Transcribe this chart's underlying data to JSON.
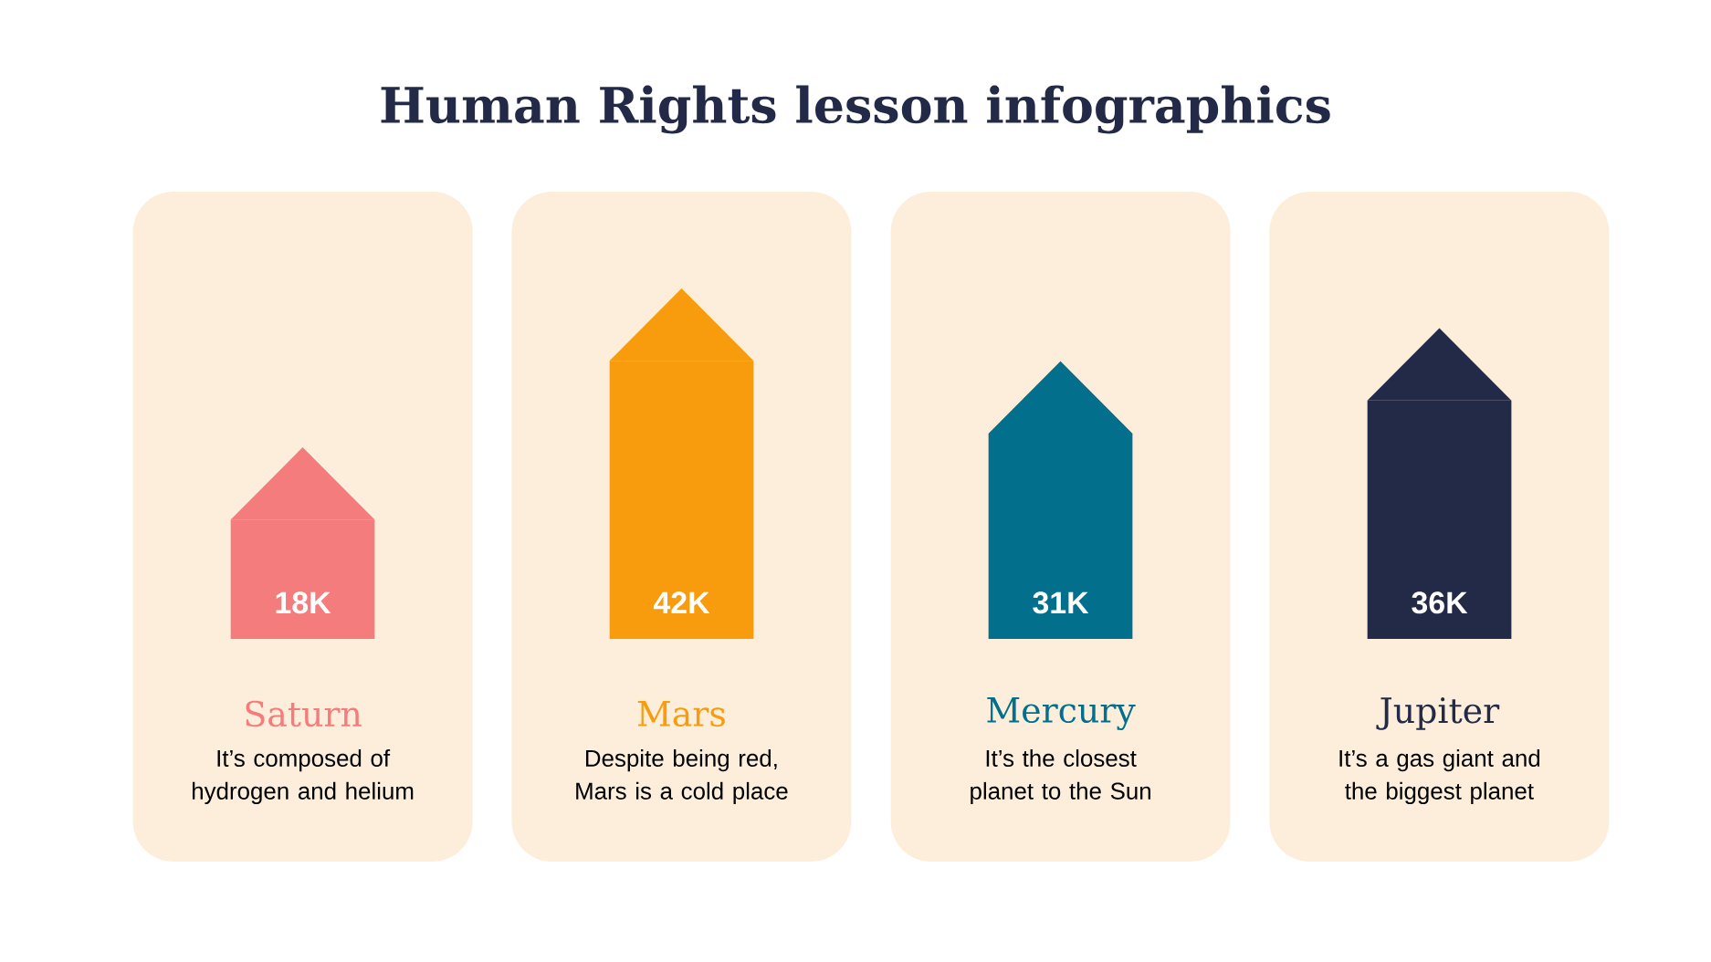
{
  "chart_data": {
    "type": "bar",
    "title": "Human Rights lesson infographics",
    "categories": [
      "Saturn",
      "Mars",
      "Mercury",
      "Jupiter"
    ],
    "values": [
      18,
      42,
      31,
      36
    ],
    "value_labels": [
      "18K",
      "42K",
      "31K",
      "36K"
    ],
    "colors": [
      "#f47c7c",
      "#f89c0e",
      "#026f8c",
      "#232a47"
    ],
    "annotations": [
      "It’s composed of hydrogen and helium",
      "Despite being red, Mars is a cold place",
      "It’s the closest planet to the Sun",
      "It’s a gas giant and the biggest planet"
    ]
  }
}
